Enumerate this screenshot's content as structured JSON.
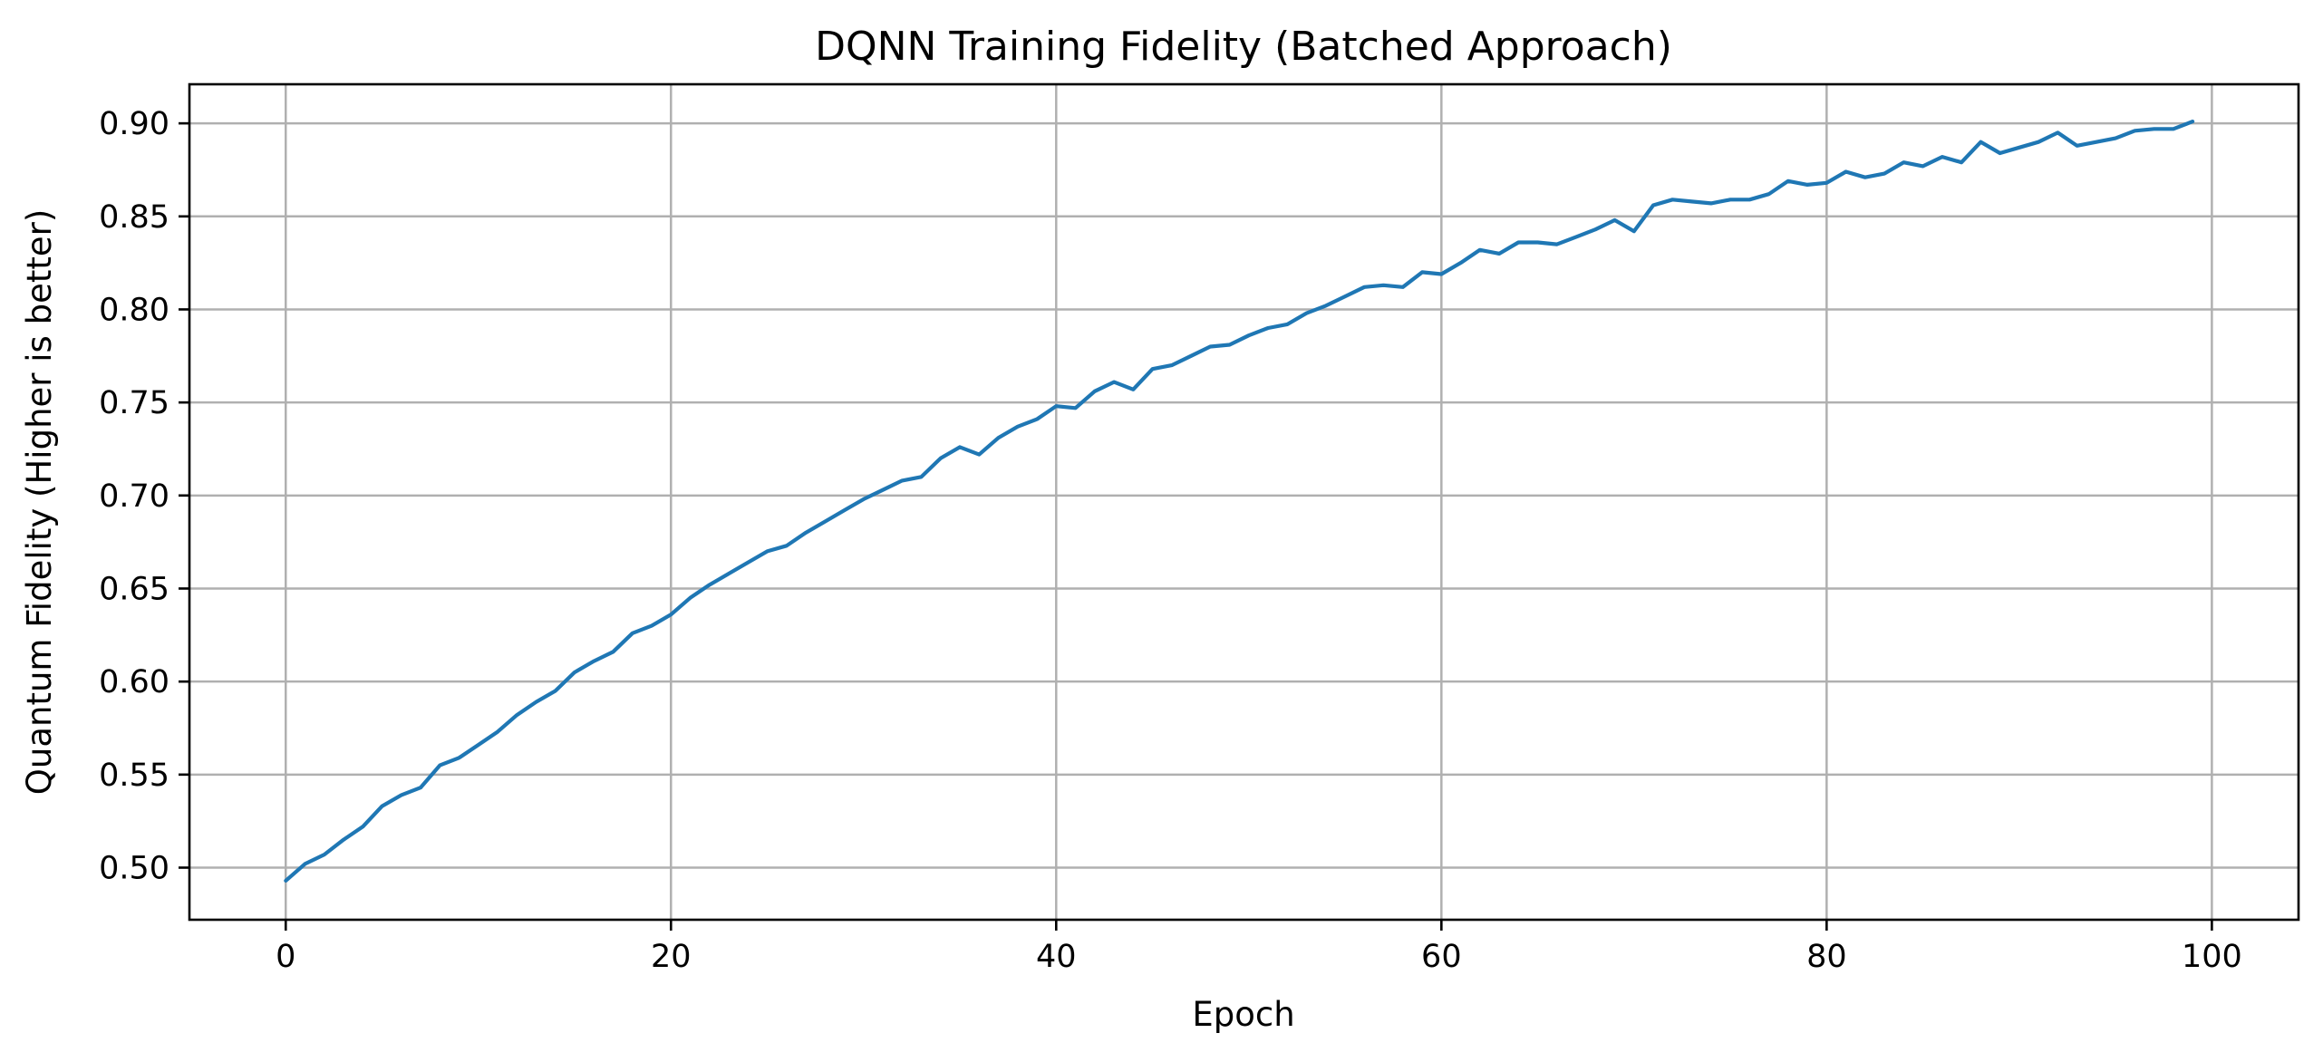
{
  "chart_data": {
    "type": "line",
    "title": "DQNN Training Fidelity (Batched Approach)",
    "xlabel": "Epoch",
    "ylabel": "Quantum Fidelity (Higher is better)",
    "xlim": [
      -5,
      104.5
    ],
    "ylim": [
      0.472,
      0.921
    ],
    "xticks": [
      0,
      20,
      40,
      60,
      80,
      100
    ],
    "xtick_labels": [
      "0",
      "20",
      "40",
      "60",
      "80",
      "100"
    ],
    "yticks": [
      0.5,
      0.55,
      0.6,
      0.65,
      0.7,
      0.75,
      0.8,
      0.85,
      0.9
    ],
    "ytick_labels": [
      "0.50",
      "0.55",
      "0.60",
      "0.65",
      "0.70",
      "0.75",
      "0.80",
      "0.85",
      "0.90"
    ],
    "grid": true,
    "legend": "none",
    "series": [
      {
        "color": "#1f77b4",
        "x": [
          0,
          1,
          2,
          3,
          4,
          5,
          6,
          7,
          8,
          9,
          10,
          11,
          12,
          13,
          14,
          15,
          16,
          17,
          18,
          19,
          20,
          21,
          22,
          23,
          24,
          25,
          26,
          27,
          28,
          29,
          30,
          31,
          32,
          33,
          34,
          35,
          36,
          37,
          38,
          39,
          40,
          41,
          42,
          43,
          44,
          45,
          46,
          47,
          48,
          49,
          50,
          51,
          52,
          53,
          54,
          55,
          56,
          57,
          58,
          59,
          60,
          61,
          62,
          63,
          64,
          65,
          66,
          67,
          68,
          69,
          70,
          71,
          72,
          73,
          74,
          75,
          76,
          77,
          78,
          79,
          80,
          81,
          82,
          83,
          84,
          85,
          86,
          87,
          88,
          89,
          90,
          91,
          92,
          93,
          94,
          95,
          96,
          97,
          98,
          99
        ],
        "y": [
          0.493,
          0.502,
          0.507,
          0.515,
          0.522,
          0.533,
          0.539,
          0.543,
          0.555,
          0.559,
          0.566,
          0.573,
          0.582,
          0.589,
          0.595,
          0.605,
          0.611,
          0.616,
          0.626,
          0.63,
          0.636,
          0.645,
          0.652,
          0.658,
          0.664,
          0.67,
          0.673,
          0.68,
          0.686,
          0.692,
          0.698,
          0.703,
          0.708,
          0.71,
          0.72,
          0.726,
          0.722,
          0.731,
          0.737,
          0.741,
          0.748,
          0.747,
          0.756,
          0.761,
          0.757,
          0.768,
          0.77,
          0.775,
          0.78,
          0.781,
          0.786,
          0.79,
          0.792,
          0.798,
          0.802,
          0.807,
          0.812,
          0.813,
          0.812,
          0.82,
          0.819,
          0.825,
          0.832,
          0.83,
          0.836,
          0.836,
          0.835,
          0.839,
          0.843,
          0.848,
          0.842,
          0.856,
          0.859,
          0.858,
          0.857,
          0.859,
          0.859,
          0.862,
          0.869,
          0.867,
          0.868,
          0.874,
          0.871,
          0.873,
          0.879,
          0.877,
          0.882,
          0.879,
          0.89,
          0.884,
          0.887,
          0.89,
          0.895,
          0.888,
          0.89,
          0.892,
          0.896,
          0.897,
          0.897,
          0.901
        ]
      }
    ]
  }
}
